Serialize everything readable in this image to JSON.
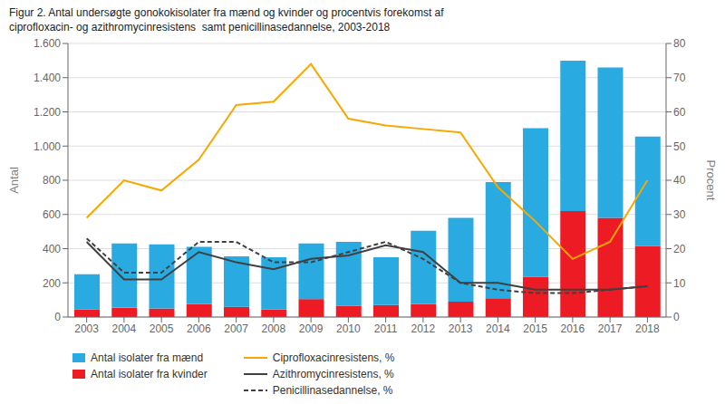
{
  "chart_data": {
    "type": "bar",
    "title": "Figur 2. Antal undersøgte gonokokisolater fra mænd og kvinder og procentvis forekomst af\nciprofloxacin- og azithromycinresistens  samt penicillinasedannelse, 2003-2018",
    "categories": [
      "2003",
      "2004",
      "2005",
      "2006",
      "2007",
      "2008",
      "2009",
      "2010",
      "2011",
      "2012",
      "2013",
      "2014",
      "2015",
      "2016",
      "2017",
      "2018"
    ],
    "series": [
      {
        "name": "Antal isolater fra kvinder",
        "type": "bar",
        "color": "#ED1C24",
        "values": [
          45,
          55,
          50,
          75,
          60,
          45,
          105,
          65,
          70,
          75,
          90,
          110,
          235,
          620,
          580,
          415
        ]
      },
      {
        "name": "Antal isolater fra mænd",
        "type": "bar",
        "color": "#29ABE2",
        "values": [
          205,
          375,
          375,
          335,
          295,
          305,
          325,
          375,
          280,
          430,
          490,
          680,
          870,
          880,
          880,
          640
        ]
      },
      {
        "name": "Ciprofloxacinresistens, %",
        "type": "line",
        "axis": "y2",
        "color": "#F7A800",
        "line_style": "solid",
        "values": [
          29,
          40,
          37,
          46,
          62,
          63,
          74,
          58,
          56,
          55,
          54,
          38,
          28,
          17,
          22,
          40
        ]
      },
      {
        "name": "Azithromycinresistens, %",
        "type": "line",
        "axis": "y2",
        "color": "#404040",
        "line_style": "solid",
        "values": [
          22,
          11,
          11,
          19,
          16,
          14,
          17,
          18,
          21,
          19,
          10,
          10,
          8,
          8,
          8,
          9
        ]
      },
      {
        "name": "Penicillinasedannelse, %",
        "type": "line",
        "axis": "y2",
        "color": "#404040",
        "line_style": "dashed",
        "values": [
          23,
          13,
          13,
          22,
          22,
          16,
          16,
          19,
          22,
          17,
          10,
          8,
          7,
          7,
          8,
          9
        ]
      }
    ],
    "stacked": true,
    "ylabel": "Antal",
    "y2label": "Procent",
    "ylim": [
      0,
      1600
    ],
    "yticks": [
      0,
      200,
      400,
      600,
      800,
      {
        "value": 1000,
        "label": "1.000"
      },
      {
        "value": 1200,
        "label": "1.200"
      },
      {
        "value": 1400,
        "label": "1.400"
      },
      {
        "value": 1600,
        "label": "1.600"
      }
    ],
    "y2lim": [
      0,
      80
    ],
    "y2ticks": [
      0,
      10,
      20,
      30,
      40,
      50,
      60,
      70,
      80
    ],
    "grid": true,
    "legend": "lower left"
  }
}
